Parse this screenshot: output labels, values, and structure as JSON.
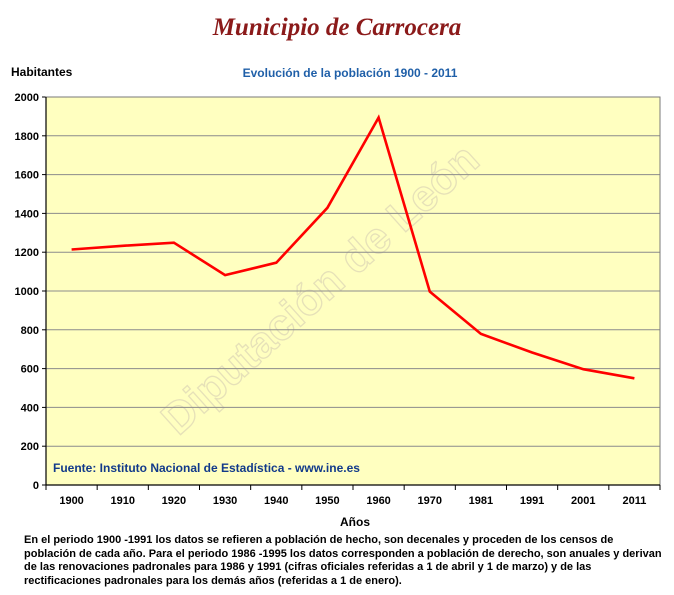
{
  "chart_data": {
    "type": "line",
    "title": "Municipio de Carrocera",
    "subtitle": "Evolución de la población 1900 - 2011",
    "xlabel": "Años",
    "ylabel": "Habitantes",
    "categories": [
      "1900",
      "1910",
      "1920",
      "1930",
      "1940",
      "1950",
      "1960",
      "1970",
      "1981",
      "1991",
      "2001",
      "2011"
    ],
    "values": [
      1214,
      1233,
      1249,
      1082,
      1146,
      1429,
      1894,
      997,
      779,
      683,
      597,
      550
    ],
    "ylim": [
      0,
      2000
    ],
    "yticks": [
      0,
      200,
      400,
      600,
      800,
      1000,
      1200,
      1400,
      1600,
      1800,
      2000
    ],
    "grid": true,
    "line_color": "#ff0000",
    "plot_background": "#ffffc0",
    "grid_color": "#8c8c8c",
    "source": "Fuente: Instituto Nacional de Estadística - www.ine.es",
    "watermark": "Diputación de León"
  },
  "note": "En el periodo 1900 -1991 los datos se refieren a población de hecho, son decenales y proceden de los censos de población de cada año. Para el periodo 1986 -1995 los datos corresponden a población de derecho, son anuales y derivan de las renovaciones padronales para 1986 y 1991 (cifras oficiales referidas a 1 de abril y 1 de marzo) y de las rectificaciones padronales para los demás años (referidas a 1 de enero)."
}
